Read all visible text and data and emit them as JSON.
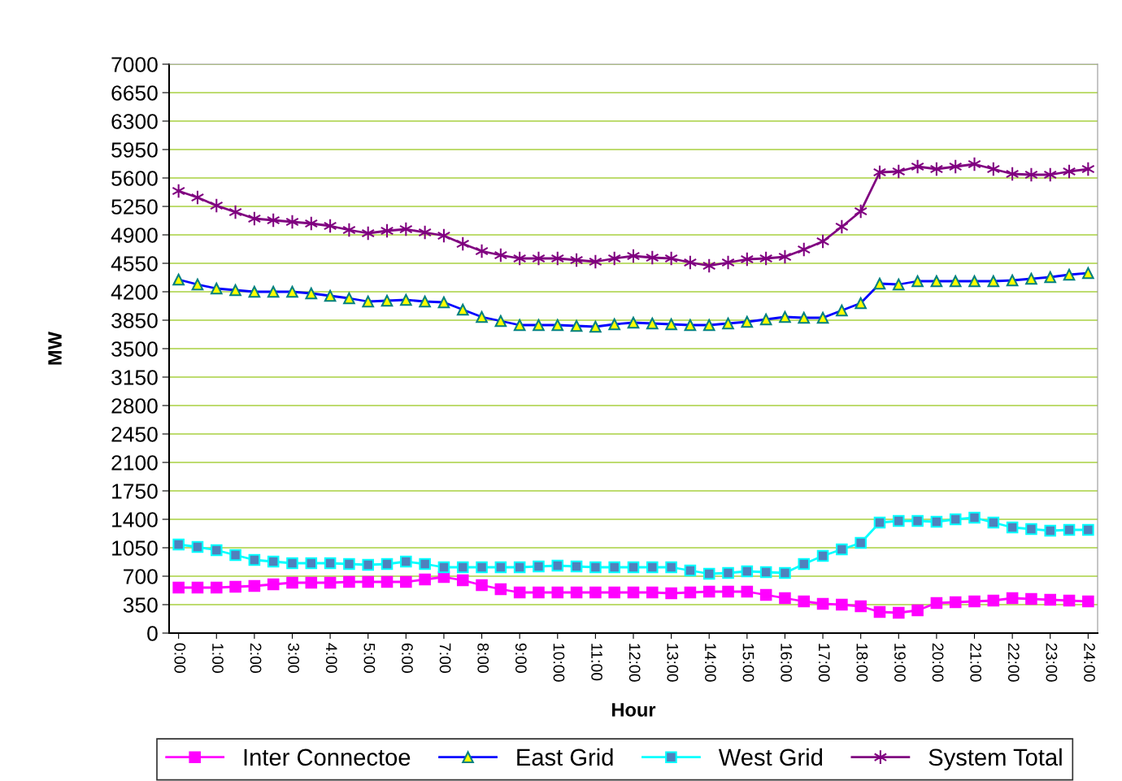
{
  "chart_data": {
    "type": "line",
    "xlabel": "Hour",
    "ylabel": "MW",
    "categories": [
      "0:00",
      null,
      "1:00",
      null,
      "2:00",
      null,
      "3:00",
      null,
      "4:00",
      null,
      "5:00",
      null,
      "6:00",
      null,
      "7:00",
      null,
      "8:00",
      null,
      "9:00",
      null,
      "10:00",
      null,
      "11:00",
      null,
      "12:00",
      null,
      "13:00",
      null,
      "14:00",
      null,
      "15:00",
      null,
      "16:00",
      null,
      "17:00",
      null,
      "18:00",
      null,
      "19:00",
      null,
      "20:00",
      null,
      "21:00",
      null,
      "22:00",
      null,
      "23:00",
      null,
      "24:00"
    ],
    "series": [
      {
        "name": "Inter Connectoe",
        "color": "#ff00ff",
        "marker": "square",
        "values": [
          560,
          560,
          560,
          570,
          580,
          600,
          620,
          620,
          620,
          630,
          630,
          630,
          630,
          660,
          690,
          650,
          590,
          540,
          500,
          500,
          500,
          500,
          500,
          500,
          500,
          500,
          490,
          500,
          510,
          510,
          510,
          470,
          430,
          390,
          360,
          350,
          330,
          260,
          250,
          280,
          370,
          380,
          390,
          400,
          430,
          420,
          410,
          400,
          390
        ]
      },
      {
        "name": "East Grid",
        "color": "#0000ff",
        "marker": "triangle",
        "values": [
          4350,
          4290,
          4240,
          4220,
          4200,
          4200,
          4200,
          4180,
          4150,
          4120,
          4080,
          4090,
          4100,
          4080,
          4070,
          3980,
          3890,
          3840,
          3790,
          3790,
          3790,
          3780,
          3770,
          3800,
          3820,
          3810,
          3800,
          3790,
          3790,
          3810,
          3830,
          3860,
          3890,
          3880,
          3880,
          3970,
          4060,
          4300,
          4290,
          4330,
          4330,
          4330,
          4330,
          4330,
          4340,
          4360,
          4380,
          4410,
          4430
        ]
      },
      {
        "name": "West Grid",
        "color": "#00ffff",
        "marker": "square",
        "values": [
          1090,
          1060,
          1020,
          960,
          900,
          880,
          860,
          860,
          860,
          850,
          840,
          850,
          880,
          850,
          810,
          810,
          810,
          810,
          810,
          820,
          830,
          820,
          810,
          810,
          810,
          810,
          810,
          770,
          730,
          740,
          760,
          750,
          740,
          850,
          950,
          1030,
          1110,
          1360,
          1380,
          1380,
          1370,
          1400,
          1420,
          1360,
          1300,
          1280,
          1260,
          1270,
          1270
        ]
      },
      {
        "name": "System Total",
        "color": "#800080",
        "marker": "cross",
        "values": [
          5440,
          5360,
          5260,
          5180,
          5100,
          5080,
          5060,
          5040,
          5010,
          4960,
          4920,
          4950,
          4970,
          4930,
          4890,
          4790,
          4700,
          4650,
          4610,
          4610,
          4610,
          4590,
          4570,
          4610,
          4640,
          4620,
          4610,
          4560,
          4520,
          4560,
          4600,
          4610,
          4630,
          4720,
          4820,
          5000,
          5190,
          5670,
          5680,
          5740,
          5710,
          5740,
          5770,
          5710,
          5650,
          5640,
          5640,
          5680,
          5710
        ]
      }
    ],
    "ylim": [
      0,
      7000
    ],
    "yticks": [
      0,
      350,
      700,
      1050,
      1400,
      1750,
      2100,
      2450,
      2800,
      3150,
      3500,
      3850,
      4200,
      4550,
      4900,
      5250,
      5600,
      5950,
      6300,
      6650,
      7000
    ],
    "grid": "y",
    "legend": "bottom",
    "line_style": "solid"
  }
}
